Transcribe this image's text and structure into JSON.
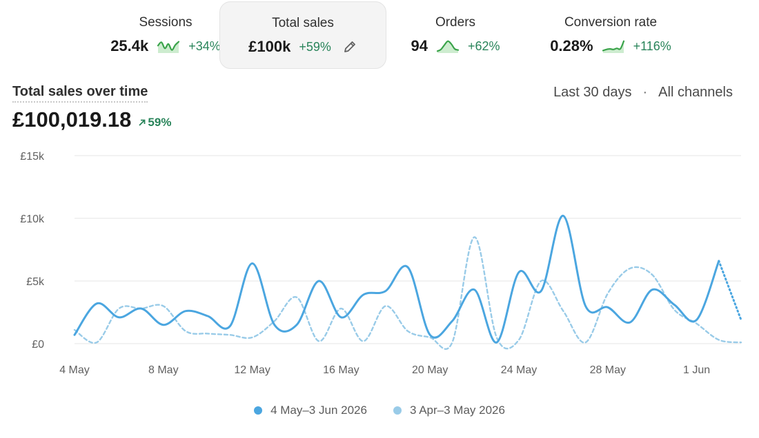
{
  "kpis": [
    {
      "label": "Sessions",
      "value": "25.4k",
      "change": "+34%",
      "selected": false,
      "sparkline": [
        0.55,
        0.85,
        0.3,
        0.7,
        0.15,
        0.6,
        0.9
      ]
    },
    {
      "label": "Total sales",
      "value": "£100k",
      "change": "+59%",
      "selected": true,
      "icon": "pencil-icon"
    },
    {
      "label": "Orders",
      "value": "94",
      "change": "+62%",
      "selected": false,
      "sparkline": [
        0.05,
        0.2,
        0.6,
        0.95,
        0.7,
        0.25,
        0.15
      ]
    },
    {
      "label": "Conversion rate",
      "value": "0.28%",
      "change": "+116%",
      "selected": false,
      "sparkline": [
        0.1,
        0.2,
        0.25,
        0.2,
        0.3,
        0.25,
        0.95
      ]
    }
  ],
  "header": {
    "title": "Total sales over time",
    "total": "£100,019.18",
    "total_change": "59%",
    "period": "Last 30 days",
    "separator": "·",
    "channel": "All channels"
  },
  "colors": {
    "current": "#4ba6e0",
    "previous": "#99cbe8",
    "positive": "#29845a",
    "grid": "#e6e6e6"
  },
  "chart_data": {
    "type": "line",
    "xlabel": "",
    "ylabel": "",
    "ylim": [
      0,
      15000
    ],
    "yticks": [
      0,
      5000,
      10000,
      15000
    ],
    "ytick_labels": [
      "£0",
      "£5k",
      "£10k",
      "£15k"
    ],
    "x_tick_labels": [
      "4 May",
      "8 May",
      "12 May",
      "16 May",
      "20 May",
      "24 May",
      "28 May",
      "1 Jun"
    ],
    "x_tick_positions": [
      0,
      4,
      8,
      12,
      16,
      20,
      24,
      28
    ],
    "x_count": 31,
    "legend_position": "bottom-center",
    "grid": true,
    "series": [
      {
        "name": "4 May–3 Jun 2026",
        "style": "solid",
        "dotted_tail_from": 29,
        "values": [
          700,
          3200,
          2100,
          2800,
          1500,
          2600,
          2200,
          1400,
          6400,
          1500,
          1500,
          5000,
          2100,
          3900,
          4200,
          6100,
          700,
          1800,
          4300,
          100,
          5700,
          4200,
          10200,
          3000,
          2900,
          1700,
          4300,
          3100,
          1900,
          6600,
          1900
        ]
      },
      {
        "name": "3 Apr–3 May 2026",
        "style": "dashed",
        "values": [
          1100,
          100,
          2800,
          2800,
          3000,
          1000,
          800,
          700,
          500,
          1800,
          3700,
          200,
          2800,
          200,
          3000,
          1000,
          500,
          100,
          8500,
          500,
          300,
          5000,
          2600,
          100,
          4000,
          6000,
          5500,
          2700,
          1600,
          300,
          100
        ]
      }
    ]
  }
}
